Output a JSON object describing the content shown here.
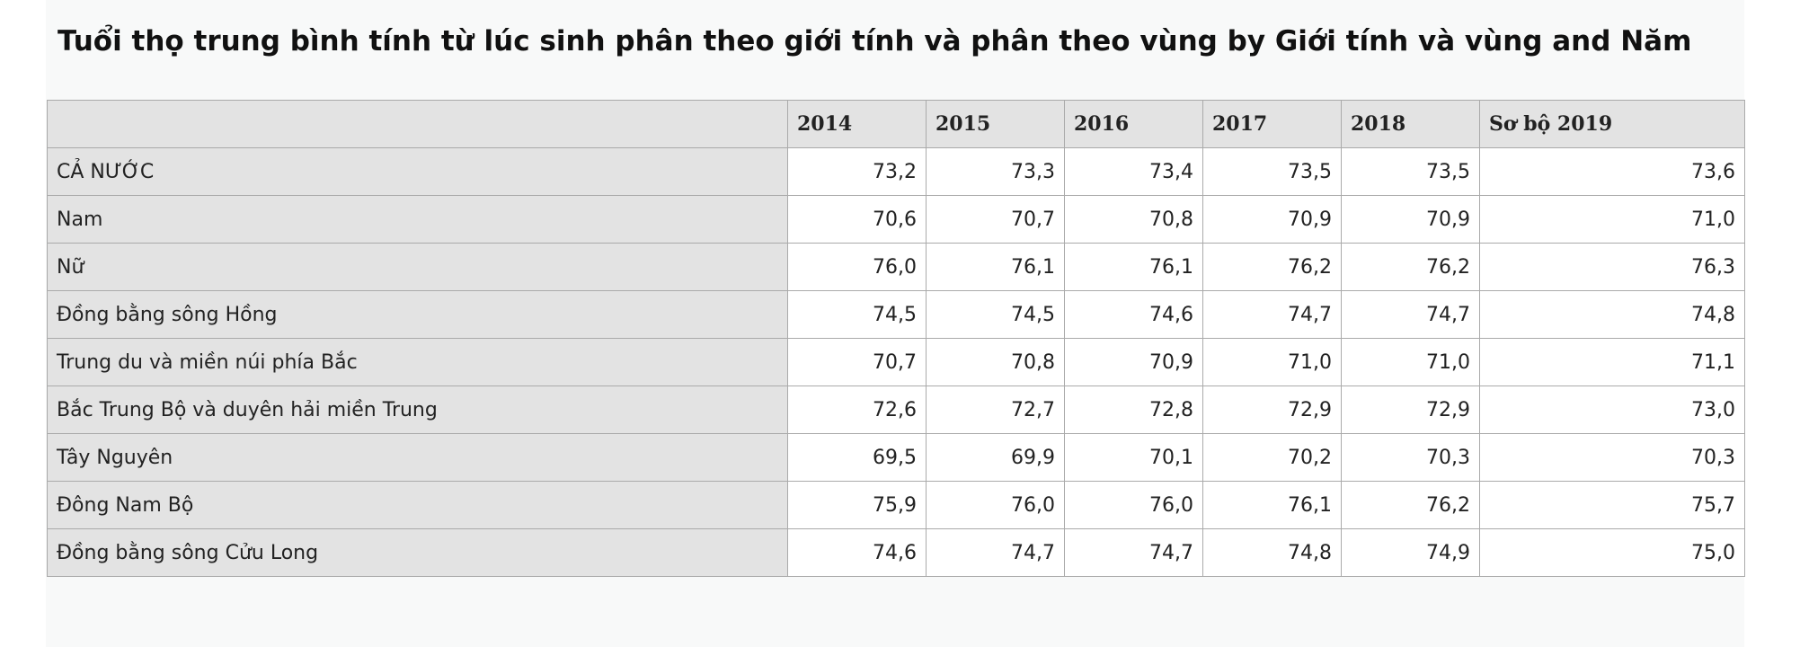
{
  "title": "Tuổi thọ trung bình tính từ lúc sinh phân theo giới tính và phân theo vùng by Giới tính và vùng and Năm",
  "table": {
    "header": [
      "2014",
      "2015",
      "2016",
      "2017",
      "2018",
      "Sơ bộ 2019"
    ],
    "rows": [
      [
        "CẢ NƯỚC",
        "73,2",
        "73,3",
        "73,4",
        "73,5",
        "73,5",
        "73,6"
      ],
      [
        "Nam",
        "70,6",
        "70,7",
        "70,8",
        "70,9",
        "70,9",
        "71,0"
      ],
      [
        "Nữ",
        "76,0",
        "76,1",
        "76,1",
        "76,2",
        "76,2",
        "76,3"
      ],
      [
        "Đồng bằng sông Hồng",
        "74,5",
        "74,5",
        "74,6",
        "74,7",
        "74,7",
        "74,8"
      ],
      [
        "Trung du và miền núi phía Bắc",
        "70,7",
        "70,8",
        "70,9",
        "71,0",
        "71,0",
        "71,1"
      ],
      [
        "Bắc Trung Bộ và duyên hải miền Trung",
        "72,6",
        "72,7",
        "72,8",
        "72,9",
        "72,9",
        "73,0"
      ],
      [
        "Tây Nguyên",
        "69,5",
        "69,9",
        "70,1",
        "70,2",
        "70,3",
        "70,3"
      ],
      [
        "Đông Nam Bộ",
        "75,9",
        "76,0",
        "76,0",
        "76,1",
        "76,2",
        "75,7"
      ],
      [
        "Đồng bằng sông Cửu Long",
        "74,6",
        "74,7",
        "74,7",
        "74,8",
        "74,9",
        "75,0"
      ]
    ]
  }
}
